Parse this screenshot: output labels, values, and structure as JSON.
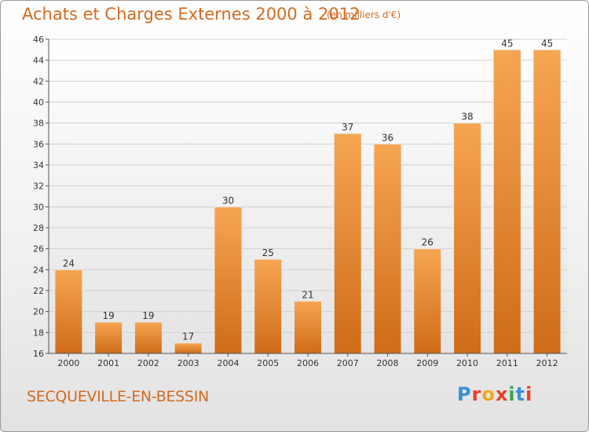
{
  "header": {
    "title": "Achats et Charges Externes 2000 à 2012",
    "unit": "(en milliers d'€)"
  },
  "footer": {
    "place": "SECQUEVILLE-EN-BESSIN",
    "logo_text": "Proxiti",
    "logo_colors": [
      "#3a8fd8",
      "#e8412c",
      "#f0a81c",
      "#e8412c",
      "#3aa64a",
      "#3a8fd8",
      "#e8412c"
    ]
  },
  "chart_data": {
    "type": "bar",
    "title": "Achats et Charges Externes 2000 à 2012",
    "subtitle": "(en milliers d'€)",
    "xlabel": "",
    "ylabel": "",
    "categories": [
      "2000",
      "2001",
      "2002",
      "2003",
      "2004",
      "2005",
      "2006",
      "2007",
      "2008",
      "2009",
      "2010",
      "2011",
      "2012"
    ],
    "values": [
      24,
      19,
      19,
      17,
      30,
      25,
      21,
      37,
      36,
      26,
      38,
      45,
      45
    ],
    "ylim": [
      16,
      46
    ],
    "yticks": [
      16,
      18,
      20,
      22,
      24,
      26,
      28,
      30,
      32,
      34,
      36,
      38,
      40,
      42,
      44,
      46
    ],
    "grid": true,
    "bar_color": "#f0a050"
  }
}
